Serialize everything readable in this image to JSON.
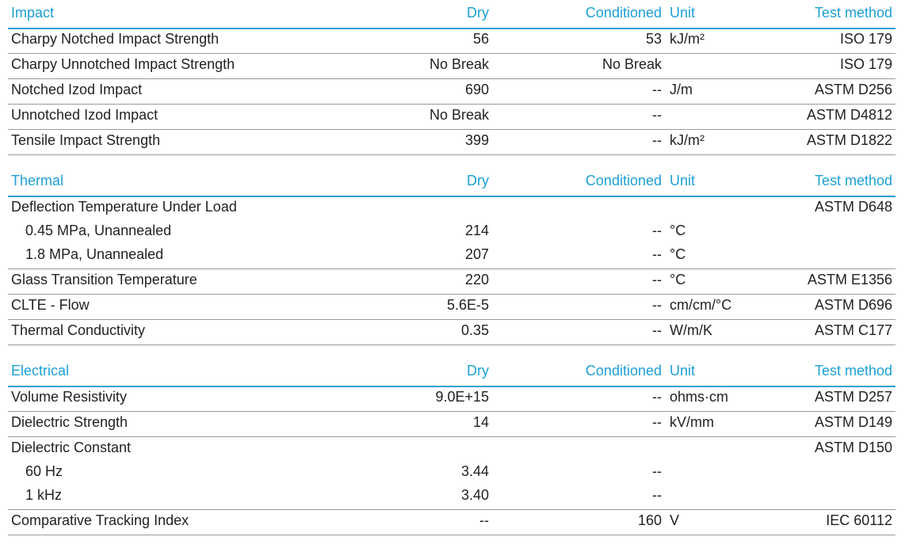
{
  "sections": [
    {
      "header": {
        "title": "Impact",
        "dry": "Dry",
        "conditioned": "Conditioned",
        "unit": "Unit",
        "test_method": "Test method"
      },
      "rows": [
        {
          "property": "Charpy Notched Impact Strength",
          "dry": "56",
          "conditioned": "53",
          "unit": "kJ/m²",
          "test_method": "ISO 179"
        },
        {
          "property": "Charpy Unnotched Impact Strength",
          "dry": "No Break",
          "conditioned": "No Break",
          "test_method": "ISO 179"
        },
        {
          "property": "Notched Izod Impact",
          "dry": "690",
          "conditioned": "--",
          "unit": "J/m",
          "test_method": "ASTM D256"
        },
        {
          "property": "Unnotched Izod Impact",
          "dry": "No Break",
          "conditioned": "--",
          "test_method": "ASTM D4812"
        },
        {
          "property": "Tensile Impact Strength",
          "dry": "399",
          "conditioned": "--",
          "unit": "kJ/m²",
          "test_method": "ASTM D1822"
        }
      ]
    },
    {
      "header": {
        "title": "Thermal",
        "dry": "Dry",
        "conditioned": "Conditioned",
        "unit": "Unit",
        "test_method": "Test method"
      },
      "rows": [
        {
          "property": "Deflection Temperature Under Load",
          "test_method": "ASTM D648",
          "sub": [
            {
              "property": "0.45 MPa, Unannealed",
              "dry": "214",
              "conditioned": "--",
              "unit": "°C"
            },
            {
              "property": "1.8 MPa, Unannealed",
              "dry": "207",
              "conditioned": "--",
              "unit": "°C"
            }
          ]
        },
        {
          "property": "Glass Transition Temperature",
          "dry": "220",
          "conditioned": "--",
          "unit": "°C",
          "test_method": "ASTM E1356"
        },
        {
          "property": "CLTE - Flow",
          "dry": "5.6E-5",
          "conditioned": "--",
          "unit": "cm/cm/°C",
          "test_method": "ASTM D696"
        },
        {
          "property": "Thermal Conductivity",
          "dry": "0.35",
          "conditioned": "--",
          "unit": "W/m/K",
          "test_method": "ASTM C177"
        }
      ]
    },
    {
      "header": {
        "title": "Electrical",
        "dry": "Dry",
        "conditioned": "Conditioned",
        "unit": "Unit",
        "test_method": "Test method"
      },
      "rows": [
        {
          "property": "Volume Resistivity",
          "dry": "9.0E+15",
          "conditioned": "--",
          "unit": "ohms·cm",
          "test_method": "ASTM D257"
        },
        {
          "property": "Dielectric Strength",
          "dry": "14",
          "conditioned": "--",
          "unit": "kV/mm",
          "test_method": "ASTM D149"
        },
        {
          "property": "Dielectric Constant",
          "test_method": "ASTM D150",
          "sub": [
            {
              "property": "60 Hz",
              "dry": "3.44",
              "conditioned": "--"
            },
            {
              "property": "1 kHz",
              "dry": "3.40",
              "conditioned": "--"
            }
          ]
        },
        {
          "property": "Comparative Tracking Index",
          "dry": "--",
          "conditioned": "160",
          "unit": "V",
          "test_method": "IEC 60112"
        }
      ]
    }
  ]
}
